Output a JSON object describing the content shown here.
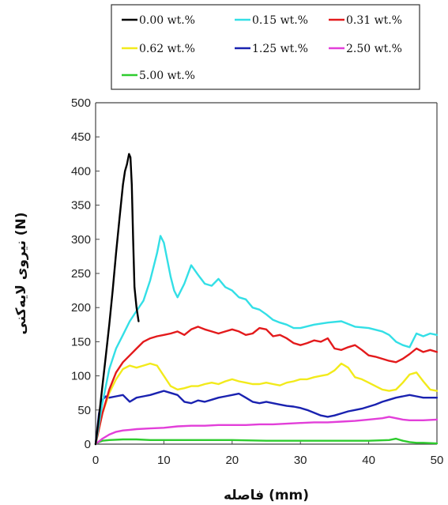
{
  "chart_data": {
    "type": "line",
    "title": "",
    "xlabel": "فاصله (mm)",
    "ylabel": "نیروی لایه‌کنی (N)",
    "xlim": [
      0,
      50
    ],
    "ylim": [
      0,
      500
    ],
    "xticks": [
      0,
      10,
      20,
      30,
      40,
      50
    ],
    "yticks": [
      0,
      50,
      100,
      150,
      200,
      250,
      300,
      350,
      400,
      450,
      500
    ],
    "grid": false,
    "legend_position": "top",
    "series": [
      {
        "name": "0.00 wt.%",
        "color": "#000000",
        "x": [
          0,
          0.5,
          1,
          1.5,
          2,
          2.5,
          3,
          3.5,
          4,
          4.3,
          4.6,
          4.9,
          5.1,
          5.3,
          5.5,
          5.7,
          6.0,
          6.3
        ],
        "y": [
          0,
          40,
          85,
          130,
          175,
          225,
          280,
          330,
          380,
          400,
          410,
          425,
          420,
          380,
          300,
          230,
          200,
          180
        ]
      },
      {
        "name": "0.15 wt.%",
        "color": "#33dfe6",
        "x": [
          0,
          1,
          2,
          3,
          4,
          5,
          6,
          7,
          8,
          9,
          9.5,
          10,
          10.5,
          11,
          11.5,
          12,
          13,
          14,
          15,
          16,
          17,
          18,
          19,
          20,
          21,
          22,
          23,
          24,
          25,
          26,
          27,
          28,
          29,
          30,
          32,
          34,
          36,
          38,
          40,
          42,
          43,
          44,
          45,
          46,
          47,
          48,
          49,
          50
        ],
        "y": [
          0,
          60,
          110,
          140,
          160,
          180,
          195,
          210,
          240,
          280,
          305,
          295,
          270,
          245,
          225,
          215,
          235,
          262,
          248,
          235,
          232,
          242,
          230,
          225,
          215,
          212,
          200,
          197,
          190,
          182,
          178,
          175,
          170,
          170,
          175,
          178,
          180,
          172,
          170,
          165,
          160,
          150,
          145,
          142,
          162,
          158,
          162,
          160
        ]
      },
      {
        "name": "0.31 wt.%",
        "color": "#e31a1c",
        "x": [
          0,
          1,
          2,
          3,
          4,
          5,
          6,
          7,
          8,
          9,
          10,
          11,
          12,
          13,
          14,
          15,
          16,
          17,
          18,
          19,
          20,
          21,
          22,
          23,
          24,
          25,
          26,
          27,
          28,
          29,
          30,
          31,
          32,
          33,
          34,
          35,
          36,
          37,
          38,
          39,
          40,
          41,
          42,
          43,
          44,
          45,
          46,
          47,
          48,
          49,
          50
        ],
        "y": [
          0,
          45,
          80,
          105,
          120,
          130,
          140,
          150,
          155,
          158,
          160,
          162,
          165,
          160,
          168,
          172,
          168,
          165,
          162,
          165,
          168,
          165,
          160,
          162,
          170,
          168,
          158,
          160,
          155,
          148,
          145,
          148,
          152,
          150,
          155,
          140,
          138,
          142,
          145,
          138,
          130,
          128,
          125,
          122,
          120,
          125,
          132,
          140,
          135,
          138,
          135
        ]
      },
      {
        "name": "0.62 wt.%",
        "color": "#f2ea1b",
        "x": [
          0,
          1,
          2,
          3,
          4,
          5,
          6,
          7,
          8,
          9,
          10,
          11,
          12,
          13,
          14,
          15,
          16,
          17,
          18,
          19,
          20,
          21,
          22,
          23,
          24,
          25,
          26,
          27,
          28,
          29,
          30,
          31,
          32,
          33,
          34,
          35,
          36,
          37,
          38,
          39,
          40,
          41,
          42,
          43,
          44,
          45,
          46,
          47,
          48,
          49,
          50
        ],
        "y": [
          0,
          45,
          75,
          95,
          110,
          115,
          112,
          115,
          118,
          115,
          100,
          85,
          80,
          82,
          85,
          85,
          88,
          90,
          88,
          92,
          95,
          92,
          90,
          88,
          88,
          90,
          88,
          86,
          90,
          92,
          95,
          95,
          98,
          100,
          102,
          108,
          118,
          112,
          98,
          95,
          90,
          85,
          80,
          78,
          80,
          90,
          102,
          105,
          92,
          80,
          78
        ]
      },
      {
        "name": "1.25 wt.%",
        "color": "#1a22b0",
        "x": [
          0,
          0.5,
          1,
          1.5,
          2,
          3,
          4,
          5,
          6,
          7,
          8,
          9,
          10,
          11,
          12,
          13,
          14,
          15,
          16,
          17,
          18,
          19,
          20,
          21,
          22,
          23,
          24,
          25,
          26,
          27,
          28,
          29,
          30,
          31,
          32,
          33,
          34,
          35,
          36,
          37,
          38,
          39,
          40,
          41,
          42,
          43,
          44,
          45,
          46,
          47,
          48,
          49,
          50
        ],
        "y": [
          0,
          45,
          65,
          70,
          68,
          70,
          72,
          62,
          68,
          70,
          72,
          75,
          78,
          75,
          72,
          62,
          60,
          64,
          62,
          65,
          68,
          70,
          72,
          74,
          68,
          62,
          60,
          62,
          60,
          58,
          56,
          55,
          53,
          50,
          46,
          42,
          40,
          42,
          45,
          48,
          50,
          52,
          55,
          58,
          62,
          65,
          68,
          70,
          72,
          70,
          68,
          68,
          68
        ]
      },
      {
        "name": "2.50 wt.%",
        "color": "#e23fd9",
        "x": [
          0,
          1,
          2,
          3,
          4,
          5,
          6,
          8,
          10,
          12,
          14,
          16,
          18,
          20,
          22,
          24,
          26,
          28,
          30,
          32,
          34,
          36,
          38,
          40,
          42,
          43,
          44,
          45,
          46,
          48,
          50
        ],
        "y": [
          0,
          8,
          14,
          18,
          20,
          21,
          22,
          23,
          24,
          26,
          27,
          27,
          28,
          28,
          28,
          29,
          29,
          30,
          31,
          32,
          32,
          33,
          34,
          36,
          38,
          40,
          38,
          36,
          35,
          35,
          36
        ]
      },
      {
        "name": "5.00 wt.%",
        "color": "#2ecc2e",
        "x": [
          0,
          0.5,
          1,
          2,
          4,
          6,
          8,
          10,
          15,
          20,
          25,
          30,
          35,
          40,
          43,
          44,
          45,
          46,
          47,
          48,
          50
        ],
        "y": [
          0,
          3,
          5,
          6,
          7,
          7,
          6,
          6,
          6,
          6,
          5,
          5,
          5,
          5,
          6,
          8,
          5,
          3,
          2,
          2,
          1
        ]
      }
    ]
  }
}
